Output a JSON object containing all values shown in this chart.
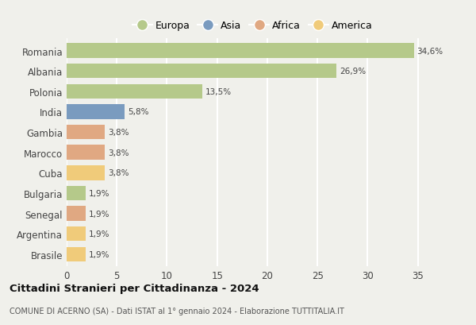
{
  "countries": [
    "Romania",
    "Albania",
    "Polonia",
    "India",
    "Gambia",
    "Marocco",
    "Cuba",
    "Bulgaria",
    "Senegal",
    "Argentina",
    "Brasile"
  ],
  "values": [
    34.6,
    26.9,
    13.5,
    5.8,
    3.8,
    3.8,
    3.8,
    1.9,
    1.9,
    1.9,
    1.9
  ],
  "labels": [
    "34,6%",
    "26,9%",
    "13,5%",
    "5,8%",
    "3,8%",
    "3,8%",
    "3,8%",
    "1,9%",
    "1,9%",
    "1,9%",
    "1,9%"
  ],
  "colors": [
    "#b5c98a",
    "#b5c98a",
    "#b5c98a",
    "#7a9bbf",
    "#e0a882",
    "#e0a882",
    "#f0cb7a",
    "#b5c98a",
    "#e0a882",
    "#f0cb7a",
    "#f0cb7a"
  ],
  "legend_labels": [
    "Europa",
    "Asia",
    "Africa",
    "America"
  ],
  "legend_colors": [
    "#b5c98a",
    "#7a9bbf",
    "#e0a882",
    "#f0cb7a"
  ],
  "title": "Cittadini Stranieri per Cittadinanza - 2024",
  "subtitle": "COMUNE DI ACERNO (SA) - Dati ISTAT al 1° gennaio 2024 - Elaborazione TUTTITALIA.IT",
  "xlim": [
    0,
    37
  ],
  "xticks": [
    0,
    5,
    10,
    15,
    20,
    25,
    30,
    35
  ],
  "background_color": "#f0f0eb",
  "grid_color": "#ffffff",
  "bar_height": 0.72,
  "label_fontsize": 7.5,
  "ytick_fontsize": 8.5,
  "xtick_fontsize": 8.5
}
